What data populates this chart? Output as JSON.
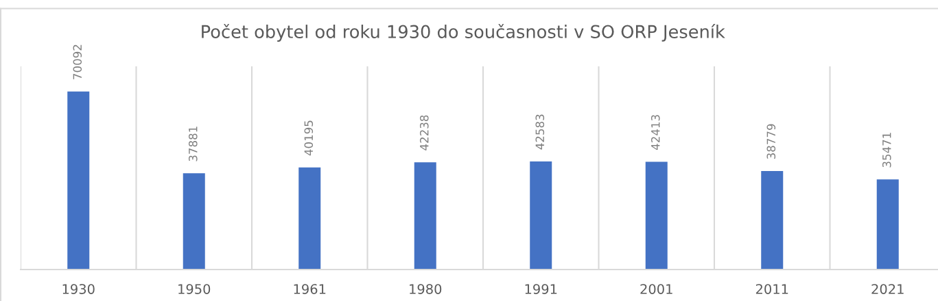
{
  "chart_data": {
    "type": "bar",
    "title": "Počet obytel od roku 1930 do současnosti v SO ORP Jeseník",
    "categories": [
      "1930",
      "1950",
      "1961",
      "1980",
      "1991",
      "2001",
      "2011",
      "2021"
    ],
    "values": [
      70092,
      37881,
      40195,
      42238,
      42583,
      42413,
      38779,
      35471
    ],
    "color": "#4472c4",
    "ylim": [
      0,
      80000
    ],
    "tick_labels": "x",
    "data_labels": true,
    "grid": "x"
  }
}
